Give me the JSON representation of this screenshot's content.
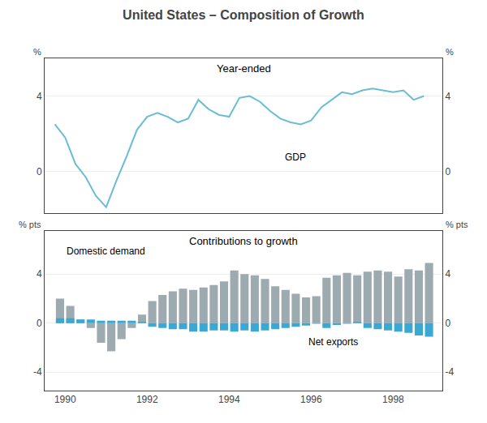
{
  "title": "United States – Composition of Growth",
  "chart_data": [
    {
      "type": "line",
      "title": "Year-ended",
      "ylabel": "%",
      "y2label": "%",
      "xlim": [
        1989.5,
        1999.2
      ],
      "xticks": [
        1990,
        1992,
        1994,
        1996,
        1998
      ],
      "ylim": [
        -2.2,
        6.0
      ],
      "yticks": [
        0,
        4
      ],
      "y2lim": [
        -2.2,
        6.0
      ],
      "y2ticks": [
        0,
        4
      ],
      "grid": "y",
      "tick_labels": "y",
      "series": [
        {
          "name": "GDP",
          "color": "#6bbdd4",
          "x": [
            1989.75,
            1990.0,
            1990.25,
            1990.5,
            1990.75,
            1991.0,
            1991.25,
            1991.5,
            1991.75,
            1992.0,
            1992.25,
            1992.5,
            1992.75,
            1993.0,
            1993.25,
            1993.5,
            1993.75,
            1994.0,
            1994.25,
            1994.5,
            1994.75,
            1995.0,
            1995.25,
            1995.5,
            1995.75,
            1996.0,
            1996.25,
            1996.5,
            1996.75,
            1997.0,
            1997.25,
            1997.5,
            1997.75,
            1998.0,
            1998.25,
            1998.5,
            1998.75
          ],
          "values": [
            2.5,
            1.8,
            0.4,
            -0.3,
            -1.3,
            -1.9,
            -0.5,
            0.8,
            2.2,
            2.9,
            3.1,
            2.9,
            2.6,
            2.8,
            3.8,
            3.3,
            3.0,
            2.9,
            3.9,
            4.0,
            3.7,
            3.2,
            2.8,
            2.6,
            2.5,
            2.7,
            3.4,
            3.8,
            4.2,
            4.1,
            4.3,
            4.4,
            4.3,
            4.2,
            4.3,
            3.8,
            4.0
          ]
        }
      ]
    },
    {
      "type": "bar",
      "title": "Contributions to growth",
      "ylabel": "% pts",
      "y2label": "% pts",
      "xlim": [
        1989.5,
        1999.2
      ],
      "xticks": [
        1990,
        1992,
        1994,
        1996,
        1998
      ],
      "ylim": [
        -5.5,
        7.5
      ],
      "yticks": [
        -4,
        0,
        4
      ],
      "y2lim": [
        -5.5,
        7.5
      ],
      "y2ticks": [
        -4,
        0,
        4
      ],
      "grid": "y",
      "series": [
        {
          "name": "Domestic demand",
          "color": "#9daab0",
          "x": [
            1989.875,
            1990.125,
            1990.375,
            1990.625,
            1990.875,
            1991.125,
            1991.375,
            1991.625,
            1991.875,
            1992.125,
            1992.375,
            1992.625,
            1992.875,
            1993.125,
            1993.375,
            1993.625,
            1993.875,
            1994.125,
            1994.375,
            1994.625,
            1994.875,
            1995.125,
            1995.375,
            1995.625,
            1995.875,
            1996.125,
            1996.375,
            1996.625,
            1996.875,
            1997.125,
            1997.375,
            1997.625,
            1997.875,
            1998.125,
            1998.375,
            1998.625,
            1998.875
          ],
          "values": [
            2.0,
            1.4,
            0.3,
            -0.4,
            -1.6,
            -2.3,
            -1.3,
            -0.4,
            0.7,
            1.8,
            2.3,
            2.6,
            2.8,
            2.7,
            2.9,
            3.1,
            3.4,
            4.3,
            4.0,
            3.9,
            3.6,
            3.0,
            2.7,
            2.4,
            2.1,
            2.2,
            3.7,
            3.9,
            4.1,
            3.9,
            4.2,
            4.3,
            4.2,
            3.8,
            4.4,
            4.3,
            4.9
          ]
        },
        {
          "name": "Net exports",
          "color": "#3ba8d4",
          "x": [
            1989.875,
            1990.125,
            1990.375,
            1990.625,
            1990.875,
            1991.125,
            1991.375,
            1991.625,
            1991.875,
            1992.125,
            1992.375,
            1992.625,
            1992.875,
            1993.125,
            1993.375,
            1993.625,
            1993.875,
            1994.125,
            1994.375,
            1994.625,
            1994.875,
            1995.125,
            1995.375,
            1995.625,
            1995.875,
            1996.125,
            1996.375,
            1996.625,
            1996.875,
            1997.125,
            1997.375,
            1997.625,
            1997.875,
            1998.125,
            1998.375,
            1998.625,
            1998.875
          ],
          "values": [
            0.4,
            0.4,
            0.3,
            0.3,
            0.2,
            0.2,
            0.2,
            0.2,
            0.1,
            -0.3,
            -0.4,
            -0.5,
            -0.5,
            -0.7,
            -0.7,
            -0.6,
            -0.6,
            -0.7,
            -0.6,
            -0.7,
            -0.6,
            -0.5,
            -0.4,
            -0.3,
            -0.2,
            -0.05,
            -0.4,
            -0.15,
            -0.05,
            0.1,
            -0.4,
            -0.5,
            -0.6,
            -0.7,
            -0.8,
            -1.0,
            -1.1
          ]
        }
      ]
    }
  ]
}
